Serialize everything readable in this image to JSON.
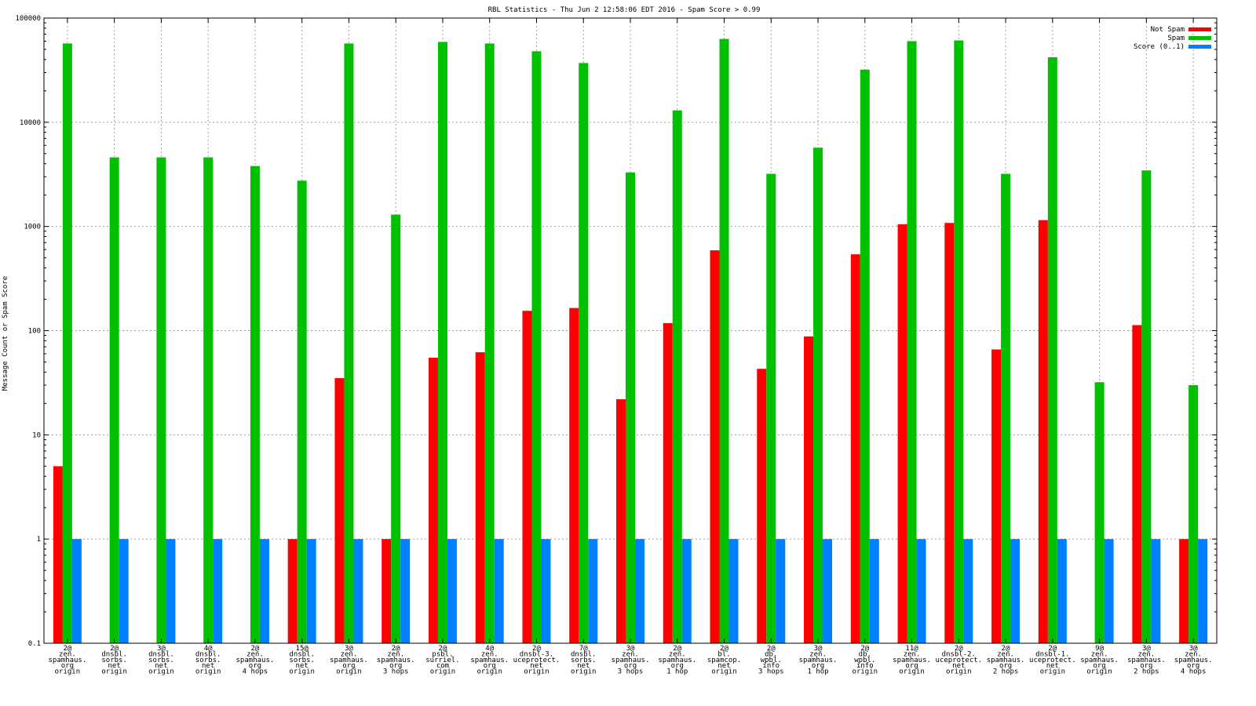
{
  "chart_data": {
    "type": "bar",
    "title": "RBL Statistics - Thu Jun  2 12:58:06 EDT 2016 - Spam Score > 0.99",
    "ylabel": "Message Count or Spam Score",
    "xlabel": "",
    "yscale": "log",
    "ylim": [
      0.1,
      100000
    ],
    "yticks": [
      "0.1",
      "1",
      "10",
      "100",
      "1000",
      "10000",
      "100000"
    ],
    "grid": true,
    "legend_position": "top-right",
    "categories": [
      [
        "2@",
        "zen.",
        "spamhaus.",
        "org",
        "origin"
      ],
      [
        "2@",
        "dnsbl.",
        "sorbs.",
        "net",
        "origin"
      ],
      [
        "3@",
        "dnsbl.",
        "sorbs.",
        "net",
        "origin"
      ],
      [
        "4@",
        "dnsbl.",
        "sorbs.",
        "net",
        "origin"
      ],
      [
        "2@",
        "zen.",
        "spamhaus.",
        "org",
        "4 hops"
      ],
      [
        "15@",
        "dnsbl.",
        "sorbs.",
        "net",
        "origin"
      ],
      [
        "3@",
        "zen.",
        "spamhaus.",
        "org",
        "origin"
      ],
      [
        "2@",
        "zen.",
        "spamhaus.",
        "org",
        "3 hops"
      ],
      [
        "2@",
        "psbl.",
        "surriel.",
        "com",
        "origin"
      ],
      [
        "4@",
        "zen.",
        "spamhaus.",
        "org",
        "origin"
      ],
      [
        "2@",
        "dnsbl-3.",
        "uceprotect.",
        "net",
        "origin"
      ],
      [
        "7@",
        "dnsbl.",
        "sorbs.",
        "net",
        "origin"
      ],
      [
        "3@",
        "zen.",
        "spamhaus.",
        "org",
        "3 hops"
      ],
      [
        "2@",
        "zen.",
        "spamhaus.",
        "org",
        "1 hop"
      ],
      [
        "2@",
        "bl.",
        "spamcop.",
        "net",
        "origin"
      ],
      [
        "2@",
        "db.",
        "wpbl.",
        "info",
        "3 hops"
      ],
      [
        "3@",
        "zen.",
        "spamhaus.",
        "org",
        "1 hop"
      ],
      [
        "2@",
        "db.",
        "wpbl.",
        "info",
        "origin"
      ],
      [
        "11@",
        "zen.",
        "spamhaus.",
        "org",
        "origin"
      ],
      [
        "2@",
        "dnsbl-2.",
        "uceprotect.",
        "net",
        "origin"
      ],
      [
        "2@",
        "zen.",
        "spamhaus.",
        "org",
        "2 hops"
      ],
      [
        "2@",
        "dnsbl-1.",
        "uceprotect.",
        "net",
        "origin"
      ],
      [
        "9@",
        "zen.",
        "spamhaus.",
        "org",
        "origin"
      ],
      [
        "3@",
        "zen.",
        "spamhaus.",
        "org",
        "2 hops"
      ],
      [
        "3@",
        "zen.",
        "spamhaus.",
        "org",
        "4 hops"
      ]
    ],
    "series": [
      {
        "name": "Not Spam",
        "color": "#ff0000",
        "values": [
          5,
          null,
          null,
          null,
          null,
          1,
          35,
          1,
          55,
          62,
          155,
          165,
          22,
          118,
          590,
          43,
          88,
          540,
          1050,
          1080,
          66,
          1150,
          null,
          113,
          1
        ]
      },
      {
        "name": "Spam",
        "color": "#00c000",
        "values": [
          57000,
          4600,
          4600,
          4600,
          3800,
          2750,
          57000,
          1300,
          59000,
          57000,
          48000,
          37000,
          3300,
          13000,
          63000,
          3200,
          5700,
          32000,
          60000,
          61000,
          3200,
          42000,
          32,
          3450,
          30
        ]
      },
      {
        "name": "Score (0..1)",
        "color": "#0080ff",
        "values": [
          1,
          1,
          1,
          1,
          1,
          1,
          1,
          1,
          1,
          1,
          1,
          1,
          1,
          1,
          1,
          1,
          1,
          1,
          1,
          1,
          1,
          1,
          1,
          1,
          1
        ]
      }
    ]
  }
}
